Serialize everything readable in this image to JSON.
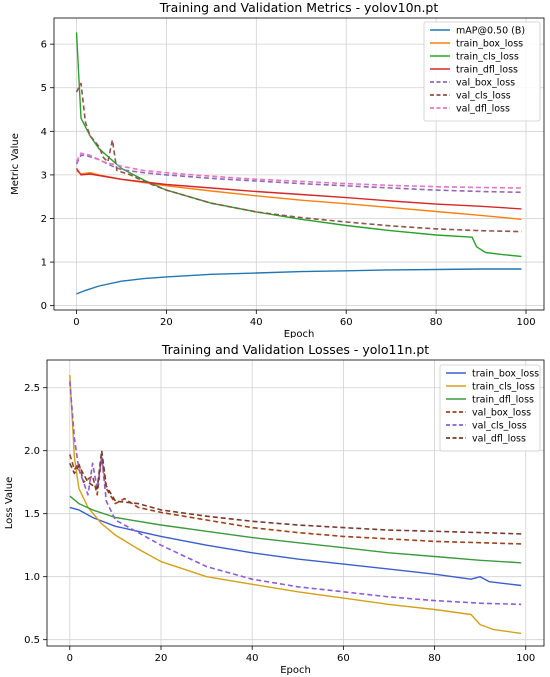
{
  "chart_data": [
    {
      "type": "line",
      "title": "Training and Validation Metrics - yolov10n.pt",
      "xlabel": "Epoch",
      "ylabel": "Metric Value",
      "xlim": [
        -5,
        104
      ],
      "ylim": [
        -0.1,
        6.6
      ],
      "xticks": [
        0,
        20,
        40,
        60,
        80,
        100
      ],
      "yticks": [
        0,
        1,
        2,
        3,
        4,
        5,
        6
      ],
      "grid": true,
      "legend_position": "top-right",
      "series": [
        {
          "name": "mAP@0.50 (B)",
          "color": "#1f77b4",
          "dash": false,
          "points": [
            [
              0,
              0.27
            ],
            [
              2,
              0.35
            ],
            [
              5,
              0.45
            ],
            [
              10,
              0.56
            ],
            [
              15,
              0.62
            ],
            [
              20,
              0.66
            ],
            [
              30,
              0.72
            ],
            [
              40,
              0.75
            ],
            [
              50,
              0.78
            ],
            [
              60,
              0.8
            ],
            [
              70,
              0.82
            ],
            [
              80,
              0.83
            ],
            [
              90,
              0.84
            ],
            [
              99,
              0.84
            ]
          ]
        },
        {
          "name": "train_box_loss",
          "color": "#ff7f0e",
          "dash": false,
          "points": [
            [
              0,
              3.1
            ],
            [
              1,
              3.02
            ],
            [
              3,
              3.05
            ],
            [
              5,
              3.0
            ],
            [
              10,
              2.9
            ],
            [
              20,
              2.75
            ],
            [
              30,
              2.63
            ],
            [
              40,
              2.52
            ],
            [
              50,
              2.42
            ],
            [
              60,
              2.34
            ],
            [
              70,
              2.25
            ],
            [
              80,
              2.16
            ],
            [
              90,
              2.07
            ],
            [
              99,
              1.98
            ]
          ]
        },
        {
          "name": "train_cls_loss",
          "color": "#2ca02c",
          "dash": false,
          "points": [
            [
              0,
              6.27
            ],
            [
              1,
              4.3
            ],
            [
              3,
              3.9
            ],
            [
              5,
              3.6
            ],
            [
              10,
              3.15
            ],
            [
              15,
              2.88
            ],
            [
              20,
              2.65
            ],
            [
              30,
              2.35
            ],
            [
              40,
              2.15
            ],
            [
              50,
              1.98
            ],
            [
              60,
              1.84
            ],
            [
              70,
              1.72
            ],
            [
              80,
              1.62
            ],
            [
              88,
              1.57
            ],
            [
              89,
              1.35
            ],
            [
              91,
              1.22
            ],
            [
              95,
              1.17
            ],
            [
              99,
              1.13
            ]
          ]
        },
        {
          "name": "train_dfl_loss",
          "color": "#d62728",
          "dash": false,
          "points": [
            [
              0,
              3.15
            ],
            [
              1,
              3.0
            ],
            [
              3,
              3.02
            ],
            [
              10,
              2.9
            ],
            [
              20,
              2.78
            ],
            [
              30,
              2.7
            ],
            [
              40,
              2.62
            ],
            [
              50,
              2.55
            ],
            [
              60,
              2.48
            ],
            [
              70,
              2.4
            ],
            [
              80,
              2.33
            ],
            [
              90,
              2.28
            ],
            [
              99,
              2.22
            ]
          ]
        },
        {
          "name": "val_box_loss",
          "color": "#9467bd",
          "dash": true,
          "points": [
            [
              0,
              3.25
            ],
            [
              1,
              3.45
            ],
            [
              2,
              3.45
            ],
            [
              5,
              3.35
            ],
            [
              8,
              3.2
            ],
            [
              10,
              3.12
            ],
            [
              15,
              3.05
            ],
            [
              20,
              3.0
            ],
            [
              30,
              2.92
            ],
            [
              40,
              2.86
            ],
            [
              50,
              2.8
            ],
            [
              60,
              2.75
            ],
            [
              70,
              2.7
            ],
            [
              80,
              2.65
            ],
            [
              90,
              2.62
            ],
            [
              99,
              2.6
            ]
          ]
        },
        {
          "name": "val_cls_loss",
          "color": "#8c564b",
          "dash": true,
          "points": [
            [
              0,
              4.9
            ],
            [
              1,
              5.1
            ],
            [
              2,
              4.2
            ],
            [
              3,
              3.9
            ],
            [
              5,
              3.65
            ],
            [
              6,
              3.4
            ],
            [
              7,
              3.3
            ],
            [
              8,
              3.8
            ],
            [
              9,
              3.1
            ],
            [
              12,
              3.0
            ],
            [
              15,
              2.85
            ],
            [
              20,
              2.65
            ],
            [
              30,
              2.35
            ],
            [
              40,
              2.15
            ],
            [
              50,
              2.02
            ],
            [
              60,
              1.92
            ],
            [
              70,
              1.83
            ],
            [
              80,
              1.76
            ],
            [
              90,
              1.72
            ],
            [
              99,
              1.7
            ]
          ]
        },
        {
          "name": "val_dfl_loss",
          "color": "#e377c2",
          "dash": true,
          "points": [
            [
              0,
              3.3
            ],
            [
              1,
              3.5
            ],
            [
              3,
              3.45
            ],
            [
              6,
              3.3
            ],
            [
              10,
              3.2
            ],
            [
              15,
              3.1
            ],
            [
              20,
              3.05
            ],
            [
              30,
              2.97
            ],
            [
              40,
              2.9
            ],
            [
              50,
              2.85
            ],
            [
              60,
              2.8
            ],
            [
              70,
              2.76
            ],
            [
              80,
              2.73
            ],
            [
              90,
              2.71
            ],
            [
              99,
              2.7
            ]
          ]
        }
      ]
    },
    {
      "type": "line",
      "title": "Training and Validation Losses - yolo11n.pt",
      "xlabel": "Epoch",
      "ylabel": "Loss Value",
      "xlim": [
        -5,
        104
      ],
      "ylim": [
        0.45,
        2.72
      ],
      "xticks": [
        0,
        20,
        40,
        60,
        80,
        100
      ],
      "yticks": [
        0.5,
        1.0,
        1.5,
        2.0,
        2.5
      ],
      "grid": true,
      "legend_position": "top-right",
      "series": [
        {
          "name": "train_box_loss",
          "color": "#3a5fcd",
          "dash": false,
          "points": [
            [
              0,
              1.55
            ],
            [
              2,
              1.53
            ],
            [
              5,
              1.47
            ],
            [
              10,
              1.4
            ],
            [
              20,
              1.32
            ],
            [
              30,
              1.25
            ],
            [
              40,
              1.19
            ],
            [
              50,
              1.14
            ],
            [
              60,
              1.1
            ],
            [
              70,
              1.06
            ],
            [
              80,
              1.02
            ],
            [
              88,
              0.98
            ],
            [
              90,
              1.0
            ],
            [
              92,
              0.96
            ],
            [
              99,
              0.93
            ]
          ]
        },
        {
          "name": "train_cls_loss",
          "color": "#d4a017",
          "dash": false,
          "points": [
            [
              0,
              2.6
            ],
            [
              1,
              1.95
            ],
            [
              2,
              1.7
            ],
            [
              4,
              1.55
            ],
            [
              7,
              1.42
            ],
            [
              10,
              1.33
            ],
            [
              15,
              1.22
            ],
            [
              20,
              1.12
            ],
            [
              30,
              1.0
            ],
            [
              40,
              0.94
            ],
            [
              50,
              0.88
            ],
            [
              60,
              0.83
            ],
            [
              70,
              0.78
            ],
            [
              80,
              0.74
            ],
            [
              88,
              0.7
            ],
            [
              90,
              0.62
            ],
            [
              93,
              0.58
            ],
            [
              99,
              0.55
            ]
          ]
        },
        {
          "name": "train_dfl_loss",
          "color": "#3c9a3c",
          "dash": false,
          "points": [
            [
              0,
              1.64
            ],
            [
              2,
              1.58
            ],
            [
              5,
              1.53
            ],
            [
              10,
              1.47
            ],
            [
              20,
              1.41
            ],
            [
              30,
              1.36
            ],
            [
              40,
              1.31
            ],
            [
              50,
              1.27
            ],
            [
              60,
              1.23
            ],
            [
              70,
              1.19
            ],
            [
              80,
              1.16
            ],
            [
              90,
              1.13
            ],
            [
              99,
              1.11
            ]
          ]
        },
        {
          "name": "val_box_loss",
          "color": "#a0401c",
          "dash": true,
          "points": [
            [
              0,
              1.97
            ],
            [
              1,
              1.85
            ],
            [
              2,
              1.9
            ],
            [
              3,
              1.75
            ],
            [
              5,
              1.8
            ],
            [
              6,
              1.65
            ],
            [
              7,
              1.95
            ],
            [
              8,
              1.7
            ],
            [
              10,
              1.58
            ],
            [
              12,
              1.62
            ],
            [
              15,
              1.55
            ],
            [
              20,
              1.51
            ],
            [
              30,
              1.45
            ],
            [
              40,
              1.39
            ],
            [
              50,
              1.35
            ],
            [
              60,
              1.32
            ],
            [
              70,
              1.3
            ],
            [
              80,
              1.28
            ],
            [
              90,
              1.27
            ],
            [
              99,
              1.26
            ]
          ]
        },
        {
          "name": "val_cls_loss",
          "color": "#8a5cd6",
          "dash": true,
          "points": [
            [
              0,
              2.55
            ],
            [
              1,
              2.1
            ],
            [
              2,
              1.85
            ],
            [
              3,
              1.75
            ],
            [
              4,
              1.65
            ],
            [
              5,
              1.9
            ],
            [
              6,
              1.7
            ],
            [
              7,
              1.95
            ],
            [
              8,
              1.6
            ],
            [
              10,
              1.45
            ],
            [
              15,
              1.35
            ],
            [
              20,
              1.25
            ],
            [
              30,
              1.08
            ],
            [
              40,
              0.98
            ],
            [
              50,
              0.92
            ],
            [
              60,
              0.88
            ],
            [
              70,
              0.84
            ],
            [
              80,
              0.81
            ],
            [
              90,
              0.79
            ],
            [
              99,
              0.78
            ]
          ]
        },
        {
          "name": "val_dfl_loss",
          "color": "#7a3a2a",
          "dash": true,
          "points": [
            [
              0,
              1.9
            ],
            [
              1,
              1.82
            ],
            [
              2,
              1.88
            ],
            [
              4,
              1.75
            ],
            [
              6,
              1.7
            ],
            [
              7,
              2.0
            ],
            [
              8,
              1.72
            ],
            [
              10,
              1.6
            ],
            [
              15,
              1.58
            ],
            [
              20,
              1.53
            ],
            [
              30,
              1.48
            ],
            [
              40,
              1.44
            ],
            [
              50,
              1.41
            ],
            [
              60,
              1.39
            ],
            [
              70,
              1.37
            ],
            [
              80,
              1.36
            ],
            [
              90,
              1.35
            ],
            [
              99,
              1.34
            ]
          ]
        }
      ]
    }
  ]
}
